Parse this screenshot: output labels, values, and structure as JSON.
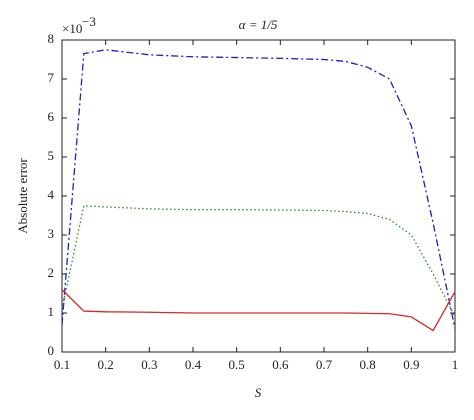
{
  "chart_data": {
    "type": "line",
    "title": "α = 1/5",
    "xlabel": "S",
    "ylabel": "Absolute error",
    "y_multiplier_base": "×10",
    "y_multiplier_exponent": "−3",
    "x": [
      0.1,
      0.15,
      0.2,
      0.3,
      0.4,
      0.5,
      0.6,
      0.7,
      0.75,
      0.8,
      0.85,
      0.9,
      0.95,
      1.0
    ],
    "series": [
      {
        "color": "#1f1fbf",
        "linestyle": "dashdot",
        "values": [
          0.7,
          7.65,
          7.75,
          7.62,
          7.57,
          7.55,
          7.53,
          7.5,
          7.45,
          7.3,
          7.0,
          5.8,
          3.3,
          0.6
        ]
      },
      {
        "color": "#2a8a2a",
        "linestyle": "dotted",
        "values": [
          1.1,
          3.75,
          3.72,
          3.67,
          3.65,
          3.65,
          3.64,
          3.63,
          3.6,
          3.55,
          3.4,
          3.0,
          2.0,
          0.9
        ]
      },
      {
        "color": "#d42a2a",
        "linestyle": "solid",
        "values": [
          1.6,
          1.05,
          1.03,
          1.02,
          1.0,
          1.0,
          1.0,
          1.0,
          1.0,
          0.99,
          0.98,
          0.9,
          0.55,
          1.55
        ]
      }
    ],
    "xlim": [
      0.1,
      1
    ],
    "xticks": [
      0.1,
      0.2,
      0.3,
      0.4,
      0.5,
      0.6,
      0.7,
      0.8,
      0.9,
      1
    ],
    "ylim": [
      0,
      8
    ],
    "yticks": [
      0,
      1,
      2,
      3,
      4,
      5,
      6,
      7,
      8
    ],
    "grid": false
  }
}
